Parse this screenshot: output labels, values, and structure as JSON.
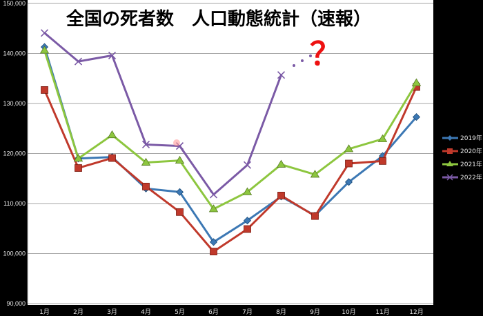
{
  "chart_data": {
    "type": "line",
    "title": "全国の死者数　人口動態統計（速報）",
    "categories": [
      "1月",
      "2月",
      "3月",
      "4月",
      "5月",
      "6月",
      "7月",
      "8月",
      "9月",
      "10月",
      "11月",
      "12月"
    ],
    "ylim": [
      90000,
      150000
    ],
    "yticks": [
      "90,000",
      "100,000",
      "110,000",
      "120,000",
      "130,000",
      "140,000",
      "150,000"
    ],
    "ytick_values": [
      90000,
      100000,
      110000,
      120000,
      130000,
      140000,
      150000
    ],
    "grid": true,
    "legend_position": "right",
    "annotation": "？",
    "series": [
      {
        "name": "2019年",
        "color": "#3c78b4",
        "marker": "diamond",
        "values": [
          141300,
          119000,
          119300,
          113000,
          112300,
          102300,
          106600,
          111400,
          107600,
          114300,
          119500,
          127300
        ]
      },
      {
        "name": "2020年",
        "color": "#c0392b",
        "marker": "square",
        "values": [
          132700,
          117100,
          119100,
          113400,
          108300,
          100400,
          104900,
          111600,
          107500,
          118000,
          118500,
          133300
        ]
      },
      {
        "name": "2021年",
        "color": "#8dc63f",
        "marker": "triangle",
        "values": [
          140600,
          119000,
          123700,
          118200,
          118600,
          108900,
          112300,
          117800,
          115800,
          120900,
          122900,
          134100
        ]
      },
      {
        "name": "2022年",
        "color": "#7b5aa6",
        "marker": "cross",
        "values": [
          144100,
          138400,
          139600,
          121800,
          121500,
          111800,
          117700,
          135700,
          null,
          null,
          null,
          null
        ]
      }
    ]
  }
}
